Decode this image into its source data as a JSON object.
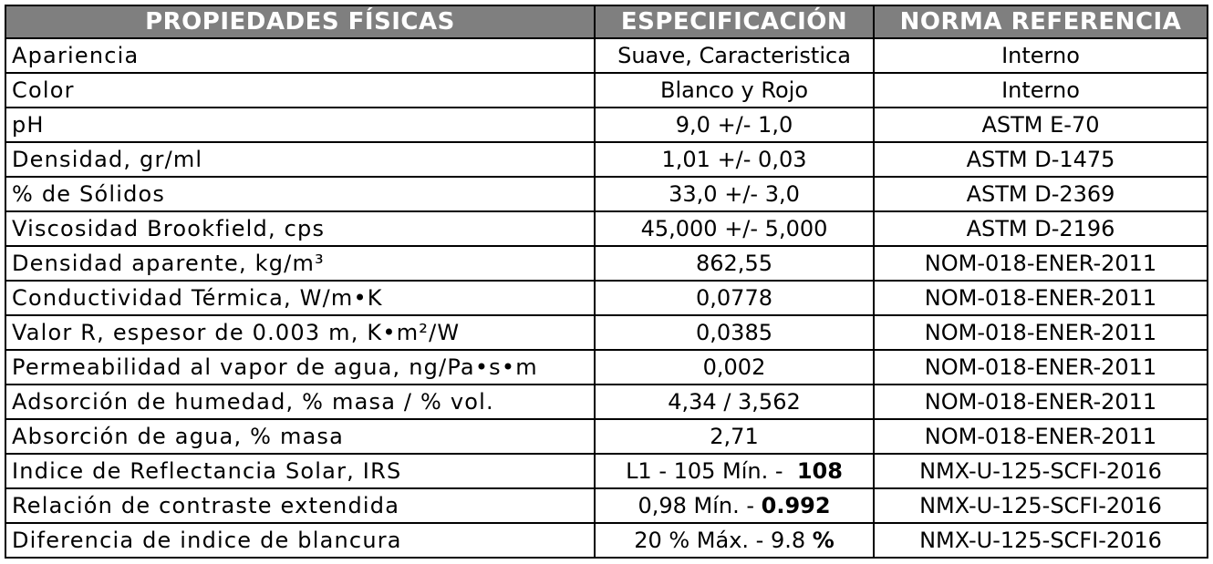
{
  "table": {
    "headers": [
      "PROPIEDADES FÍSICAS",
      "ESPECIFICACIÓN",
      "NORMA REFERENCIA"
    ],
    "header_bg": "#7f7f7f",
    "rows": [
      {
        "prop": "Apariencia",
        "spec": "Suave, Caracteristica",
        "spec_bold": "",
        "norm": "Interno"
      },
      {
        "prop": "Color",
        "spec": "Blanco y Rojo",
        "spec_bold": "",
        "norm": "Interno"
      },
      {
        "prop": "pH",
        "spec": "9,0 +/- 1,0",
        "spec_bold": "",
        "norm": "ASTM E-70"
      },
      {
        "prop": "Densidad, gr/ml",
        "spec": "1,01 +/- 0,03",
        "spec_bold": "",
        "norm": "ASTM D-1475"
      },
      {
        "prop": "% de Sólidos",
        "spec": "33,0 +/- 3,0",
        "spec_bold": "",
        "norm": "ASTM D-2369"
      },
      {
        "prop": "Viscosidad Brookfield, cps",
        "spec": "45,000 +/- 5,000",
        "spec_bold": "",
        "norm": "ASTM D-2196"
      },
      {
        "prop": "Densidad aparente, kg/m³",
        "spec": "862,55",
        "spec_bold": "",
        "norm": "NOM-018-ENER-2011"
      },
      {
        "prop": "Conductividad Térmica, W/m•K",
        "spec": "0,0778",
        "spec_bold": "",
        "norm": "NOM-018-ENER-2011"
      },
      {
        "prop": "Valor R, espesor de 0.003 m, K•m²/W",
        "spec": "0,0385",
        "spec_bold": "",
        "norm": "NOM-018-ENER-2011"
      },
      {
        "prop": "Permeabilidad al vapor de agua, ng/Pa•s•m",
        "spec": "0,002",
        "spec_bold": "",
        "norm": "NOM-018-ENER-2011"
      },
      {
        "prop": "Adsorción de humedad, % masa / % vol.",
        "spec": "4,34 / 3,562",
        "spec_bold": "",
        "norm": "NOM-018-ENER-2011"
      },
      {
        "prop": "Absorción de agua, % masa",
        "spec": "2,71",
        "spec_bold": "",
        "norm": "NOM-018-ENER-2011"
      },
      {
        "prop": "Indice de Reflectancia Solar, IRS",
        "spec": "L1 - 105 Mín. -  ",
        "spec_bold": "108",
        "norm": "NMX-U-125-SCFI-2016"
      },
      {
        "prop": "Relación de contraste extendida",
        "spec": "0,98 Mín. - ",
        "spec_bold": "0.992",
        "norm": "NMX-U-125-SCFI-2016"
      },
      {
        "prop": "Diferencia de indice de blancura",
        "spec": "20 % Máx. - 9.8 ",
        "spec_bold": "%",
        "norm": "NMX-U-125-SCFI-2016"
      }
    ]
  }
}
